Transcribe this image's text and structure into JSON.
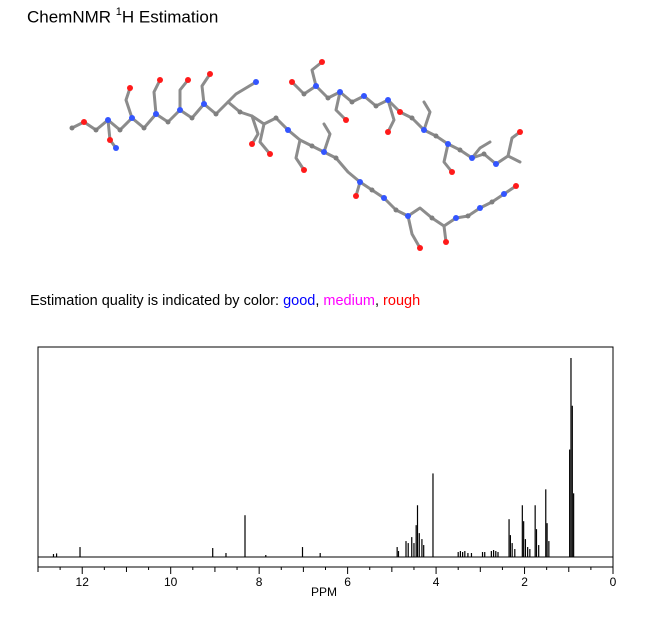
{
  "header": {
    "title_prefix": "ChemNMR ",
    "title_sup": "1",
    "title_suffix": "H Estimation"
  },
  "legend": {
    "prefix": "Estimation quality is indicated by color: ",
    "good": "good",
    "sep1": ", ",
    "medium": "medium",
    "sep2": ", ",
    "rough": "rough",
    "colors": {
      "good": "#0000ff",
      "medium": "#ff00ff",
      "rough": "#ff0000"
    }
  },
  "chart_data": {
    "type": "line",
    "xlabel": "PPM",
    "xlim": [
      13,
      0
    ],
    "x_reversed": true,
    "ylim": [
      0,
      100
    ],
    "grid": false,
    "x_ticks": [
      12,
      10,
      8,
      6,
      4,
      2,
      0
    ],
    "x_tick_labels": [
      "12",
      "10",
      "8",
      "6",
      "4",
      "2",
      "0"
    ],
    "peaks": [
      {
        "ppm": 12.65,
        "height": 1.5
      },
      {
        "ppm": 12.58,
        "height": 1.8
      },
      {
        "ppm": 12.05,
        "height": 5
      },
      {
        "ppm": 9.05,
        "height": 4.5
      },
      {
        "ppm": 8.75,
        "height": 2
      },
      {
        "ppm": 8.32,
        "height": 21
      },
      {
        "ppm": 7.85,
        "height": 1
      },
      {
        "ppm": 7.02,
        "height": 5
      },
      {
        "ppm": 6.62,
        "height": 2
      },
      {
        "ppm": 4.88,
        "height": 5
      },
      {
        "ppm": 4.85,
        "height": 3
      },
      {
        "ppm": 4.68,
        "height": 8
      },
      {
        "ppm": 4.63,
        "height": 7
      },
      {
        "ppm": 4.55,
        "height": 10
      },
      {
        "ppm": 4.5,
        "height": 7
      },
      {
        "ppm": 4.45,
        "height": 16
      },
      {
        "ppm": 4.42,
        "height": 26
      },
      {
        "ppm": 4.38,
        "height": 12
      },
      {
        "ppm": 4.32,
        "height": 9
      },
      {
        "ppm": 4.28,
        "height": 6
      },
      {
        "ppm": 4.07,
        "height": 42
      },
      {
        "ppm": 3.5,
        "height": 2.5
      },
      {
        "ppm": 3.45,
        "height": 3
      },
      {
        "ppm": 3.4,
        "height": 2.5
      },
      {
        "ppm": 3.35,
        "height": 3
      },
      {
        "ppm": 3.28,
        "height": 2
      },
      {
        "ppm": 3.2,
        "height": 2
      },
      {
        "ppm": 2.95,
        "height": 2.5
      },
      {
        "ppm": 2.9,
        "height": 2.5
      },
      {
        "ppm": 2.75,
        "height": 3
      },
      {
        "ppm": 2.7,
        "height": 3.5
      },
      {
        "ppm": 2.65,
        "height": 3
      },
      {
        "ppm": 2.6,
        "height": 2.5
      },
      {
        "ppm": 2.35,
        "height": 19
      },
      {
        "ppm": 2.32,
        "height": 11
      },
      {
        "ppm": 2.28,
        "height": 7
      },
      {
        "ppm": 2.22,
        "height": 4
      },
      {
        "ppm": 2.05,
        "height": 26
      },
      {
        "ppm": 2.02,
        "height": 18
      },
      {
        "ppm": 1.98,
        "height": 9
      },
      {
        "ppm": 1.93,
        "height": 5
      },
      {
        "ppm": 1.88,
        "height": 4
      },
      {
        "ppm": 1.76,
        "height": 26
      },
      {
        "ppm": 1.73,
        "height": 14
      },
      {
        "ppm": 1.68,
        "height": 6
      },
      {
        "ppm": 1.52,
        "height": 34
      },
      {
        "ppm": 1.49,
        "height": 17
      },
      {
        "ppm": 1.45,
        "height": 8
      },
      {
        "ppm": 0.95,
        "height": 100
      },
      {
        "ppm": 0.92,
        "height": 76
      },
      {
        "ppm": 0.98,
        "height": 54
      },
      {
        "ppm": 0.89,
        "height": 32
      }
    ]
  }
}
